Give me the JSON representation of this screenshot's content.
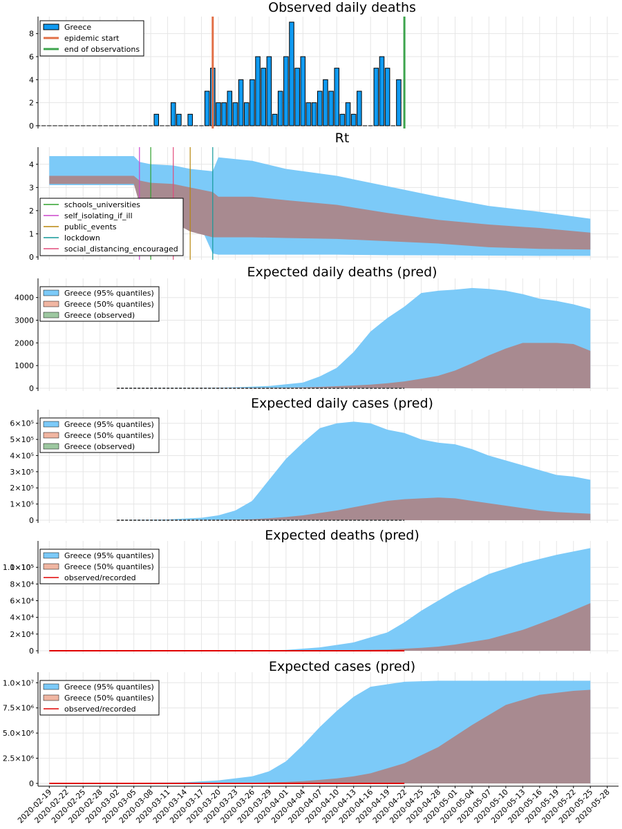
{
  "colors": {
    "bar": "#0f9af1",
    "ci95": "#7ccaf8",
    "ci50": "#a88a90",
    "ci50_legend": "#f0b6a2",
    "observed_legend": "#9dc7a0",
    "epidemic_start": "#e26f46",
    "end_obs": "#3da44d",
    "observed_line": "#e00000",
    "schools_universities": "#2ea02c",
    "self_isolating_if_ill": "#cc44cc",
    "public_events": "#b8860b",
    "lockdown": "#119999",
    "social_distancing_encouraged": "#e24a7a"
  },
  "x_dates": [
    "2020-02-19",
    "2020-02-22",
    "2020-02-25",
    "2020-02-28",
    "2020-03-02",
    "2020-03-05",
    "2020-03-08",
    "2020-03-11",
    "2020-03-14",
    "2020-03-17",
    "2020-03-20",
    "2020-03-23",
    "2020-03-26",
    "2020-03-29",
    "2020-04-01",
    "2020-04-04",
    "2020-04-07",
    "2020-04-10",
    "2020-04-13",
    "2020-04-16",
    "2020-04-19",
    "2020-04-22",
    "2020-04-25",
    "2020-04-28",
    "2020-05-01",
    "2020-05-04",
    "2020-05-07",
    "2020-05-10",
    "2020-05-13",
    "2020-05-16",
    "2020-05-19",
    "2020-05-22",
    "2020-05-25",
    "2020-05-28"
  ],
  "chart_data": [
    {
      "type": "bar",
      "title": "Observed daily deaths",
      "ylim": [
        0,
        9
      ],
      "yticks": [
        0,
        2,
        4,
        6,
        8
      ],
      "ytick_labels": [
        "0",
        "2",
        "4",
        "6",
        "8"
      ],
      "legend": [
        {
          "label": "Greece",
          "kind": "bar"
        },
        {
          "label": "epidemic start",
          "kind": "line",
          "color_key": "epidemic_start"
        },
        {
          "label": "end of observations",
          "kind": "line",
          "color_key": "end_obs"
        }
      ],
      "x_start": "2020-02-17",
      "values": [
        0,
        0,
        0,
        0,
        0,
        0,
        0,
        0,
        0,
        0,
        0,
        0,
        0,
        0,
        0,
        0,
        0,
        0,
        0,
        0,
        0,
        1,
        0,
        0,
        2,
        1,
        0,
        1,
        0,
        0,
        3,
        5,
        2,
        2,
        3,
        2,
        4,
        2,
        4,
        6,
        5,
        6,
        1,
        3,
        6,
        9,
        5,
        6,
        2,
        2,
        3,
        4,
        3,
        5,
        1,
        2,
        1,
        3,
        0,
        0,
        5,
        6,
        5,
        0,
        4
      ],
      "vlines": [
        {
          "date": "2020-03-19",
          "color_key": "epidemic_start"
        },
        {
          "date": "2020-04-22",
          "color_key": "end_obs"
        }
      ]
    },
    {
      "type": "area",
      "title": "Rt",
      "ylim": [
        0,
        4.5
      ],
      "yticks": [
        0,
        1,
        2,
        3,
        4
      ],
      "ytick_labels": [
        "0",
        "1",
        "2",
        "3",
        "4"
      ],
      "legend": [
        {
          "label": "schools_universities",
          "kind": "line",
          "color_key": "schools_universities"
        },
        {
          "label": "self_isolating_if_ill",
          "kind": "line",
          "color_key": "self_isolating_if_ill"
        },
        {
          "label": "public_events",
          "kind": "line",
          "color_key": "public_events"
        },
        {
          "label": "lockdown",
          "kind": "line",
          "color_key": "lockdown"
        },
        {
          "label": "social_distancing_encouraged",
          "kind": "line",
          "color_key": "social_distancing_encouraged"
        }
      ],
      "vlines": [
        {
          "date": "2020-03-06",
          "color_key": "self_isolating_if_ill"
        },
        {
          "date": "2020-03-08",
          "color_key": "schools_universities"
        },
        {
          "date": "2020-03-12",
          "color_key": "social_distancing_encouraged"
        },
        {
          "date": "2020-03-15",
          "color_key": "public_events"
        },
        {
          "date": "2020-03-19",
          "color_key": "lockdown"
        }
      ],
      "x": [
        "2020-02-19",
        "2020-03-05",
        "2020-03-06",
        "2020-03-08",
        "2020-03-12",
        "2020-03-15",
        "2020-03-19",
        "2020-03-20",
        "2020-03-26",
        "2020-04-01",
        "2020-04-10",
        "2020-04-19",
        "2020-04-28",
        "2020-05-07",
        "2020-05-16",
        "2020-05-25"
      ],
      "q95_low": [
        3.1,
        3.1,
        3.0,
        2.9,
        2.6,
        2.3,
        0.15,
        0.1,
        0.1,
        0.1,
        0.1,
        0.08,
        0.07,
        0.06,
        0.05,
        0.05
      ],
      "q95_high": [
        4.35,
        4.35,
        4.1,
        4.0,
        3.95,
        3.8,
        3.7,
        4.3,
        4.15,
        3.8,
        3.5,
        3.05,
        2.6,
        2.2,
        1.95,
        1.65
      ],
      "q50_low": [
        3.15,
        3.15,
        2.3,
        2.1,
        1.5,
        1.1,
        0.85,
        0.85,
        0.85,
        0.82,
        0.78,
        0.68,
        0.58,
        0.42,
        0.35,
        0.32
      ],
      "q50_high": [
        3.5,
        3.5,
        3.3,
        3.2,
        3.15,
        3.0,
        2.8,
        2.6,
        2.6,
        2.45,
        2.25,
        1.9,
        1.6,
        1.4,
        1.25,
        1.05
      ]
    },
    {
      "type": "area",
      "title": "Expected daily deaths (pred)",
      "ylim": [
        0,
        4600
      ],
      "yticks": [
        0,
        1000,
        2000,
        3000,
        4000
      ],
      "ytick_labels": [
        "0",
        "1000",
        "2000",
        "3000",
        "4000"
      ],
      "legend": [
        {
          "label": "Greece (95% quantiles)",
          "kind": "patch",
          "color_key": "ci95"
        },
        {
          "label": "Greece (50% quantiles)",
          "kind": "patch",
          "color_key": "ci50_legend"
        },
        {
          "label": "Greece (observed)",
          "kind": "patch",
          "color_key": "observed_legend"
        }
      ],
      "x": [
        "2020-03-02",
        "2020-03-17",
        "2020-03-23",
        "2020-03-29",
        "2020-04-04",
        "2020-04-07",
        "2020-04-10",
        "2020-04-13",
        "2020-04-16",
        "2020-04-19",
        "2020-04-22",
        "2020-04-25",
        "2020-04-28",
        "2020-05-01",
        "2020-05-04",
        "2020-05-07",
        "2020-05-10",
        "2020-05-13",
        "2020-05-16",
        "2020-05-19",
        "2020-05-22",
        "2020-05-25"
      ],
      "q95_low": [
        0,
        0,
        0,
        0,
        0,
        0,
        0,
        0,
        0,
        0,
        0,
        0,
        0,
        0,
        0,
        0,
        0,
        0,
        0,
        0,
        0,
        0
      ],
      "q95_high": [
        0,
        10,
        40,
        100,
        250,
        520,
        900,
        1600,
        2500,
        3100,
        3600,
        4200,
        4300,
        4350,
        4420,
        4380,
        4300,
        4150,
        3950,
        3850,
        3700,
        3500
      ],
      "q50_low": [
        0,
        0,
        0,
        0,
        0,
        0,
        0,
        0,
        0,
        0,
        0,
        0,
        0,
        0,
        0,
        0,
        0,
        0,
        0,
        0,
        0,
        0
      ],
      "q50_high": [
        0,
        2,
        8,
        20,
        40,
        60,
        90,
        120,
        160,
        220,
        300,
        420,
        550,
        780,
        1100,
        1450,
        1750,
        2000,
        2000,
        2000,
        1950,
        1650
      ],
      "observed_end": "2020-04-22"
    },
    {
      "type": "area",
      "title": "Expected daily cases (pred)",
      "ylim": [
        0,
        650000
      ],
      "yticks": [
        0,
        100000,
        200000,
        300000,
        400000,
        500000,
        600000
      ],
      "ytick_labels": [
        "0",
        "1×10⁵",
        "2×10⁵",
        "3×10⁵",
        "4×10⁵",
        "5×10⁵",
        "6×10⁵"
      ],
      "legend": [
        {
          "label": "Greece (95% quantiles)",
          "kind": "patch",
          "color_key": "ci95"
        },
        {
          "label": "Greece (50% quantiles)",
          "kind": "patch",
          "color_key": "ci50_legend"
        },
        {
          "label": "Greece (observed)",
          "kind": "patch",
          "color_key": "observed_legend"
        }
      ],
      "x": [
        "2020-03-02",
        "2020-03-11",
        "2020-03-17",
        "2020-03-20",
        "2020-03-23",
        "2020-03-26",
        "2020-03-29",
        "2020-04-01",
        "2020-04-04",
        "2020-04-07",
        "2020-04-10",
        "2020-04-13",
        "2020-04-16",
        "2020-04-19",
        "2020-04-22",
        "2020-04-25",
        "2020-04-28",
        "2020-05-01",
        "2020-05-04",
        "2020-05-07",
        "2020-05-10",
        "2020-05-13",
        "2020-05-16",
        "2020-05-19",
        "2020-05-22",
        "2020-05-25"
      ],
      "q95_low": [
        0,
        0,
        0,
        0,
        0,
        0,
        0,
        0,
        0,
        0,
        0,
        0,
        0,
        0,
        0,
        0,
        0,
        0,
        0,
        0,
        0,
        0,
        0,
        0,
        0,
        0
      ],
      "q95_high": [
        0,
        5000,
        15000,
        30000,
        60000,
        120000,
        250000,
        380000,
        480000,
        570000,
        600000,
        610000,
        600000,
        560000,
        540000,
        500000,
        480000,
        470000,
        440000,
        400000,
        370000,
        340000,
        310000,
        280000,
        270000,
        250000
      ],
      "q50_low": [
        0,
        0,
        0,
        0,
        0,
        0,
        0,
        0,
        0,
        0,
        0,
        0,
        0,
        0,
        0,
        0,
        0,
        0,
        0,
        0,
        0,
        0,
        0,
        0,
        0,
        0
      ],
      "q50_high": [
        0,
        0,
        0,
        1000,
        3000,
        6000,
        12000,
        20000,
        30000,
        45000,
        60000,
        80000,
        100000,
        120000,
        130000,
        135000,
        140000,
        135000,
        120000,
        105000,
        90000,
        75000,
        60000,
        50000,
        45000,
        40000
      ],
      "observed_end": "2020-04-22"
    },
    {
      "type": "area",
      "title": "Expected deaths (pred)",
      "ylim": [
        0,
        125000
      ],
      "yticks": [
        0,
        20000,
        40000,
        60000,
        80000,
        100000
      ],
      "ytick_labels": [
        "0",
        "2×10⁴",
        "4×10⁴",
        "6×10⁴",
        "8×10⁴",
        "1×10⁵"
      ],
      "extra_ytick": {
        "value": 100000,
        "label": "1.0×10⁵"
      },
      "legend": [
        {
          "label": "Greece (95% quantiles)",
          "kind": "patch",
          "color_key": "ci95"
        },
        {
          "label": "Greece (50% quantiles)",
          "kind": "patch",
          "color_key": "ci50_legend"
        },
        {
          "label": "observed/recorded",
          "kind": "line",
          "color_key": "observed_line"
        }
      ],
      "x": [
        "2020-02-19",
        "2020-03-26",
        "2020-04-01",
        "2020-04-07",
        "2020-04-13",
        "2020-04-19",
        "2020-04-22",
        "2020-04-25",
        "2020-04-28",
        "2020-05-01",
        "2020-05-07",
        "2020-05-13",
        "2020-05-19",
        "2020-05-25"
      ],
      "q95_low": [
        0,
        0,
        0,
        0,
        0,
        0,
        0,
        0,
        0,
        0,
        0,
        0,
        0,
        0
      ],
      "q95_high": [
        0,
        0,
        1000,
        4000,
        10000,
        22000,
        34000,
        48000,
        60000,
        72000,
        92000,
        105000,
        115000,
        123000
      ],
      "q50_low": [
        0,
        0,
        0,
        0,
        0,
        0,
        0,
        0,
        0,
        0,
        0,
        0,
        0,
        0
      ],
      "q50_high": [
        0,
        0,
        0,
        300,
        800,
        1600,
        2500,
        3500,
        5000,
        7500,
        14000,
        25000,
        40000,
        57000
      ],
      "observed_line": {
        "from": "2020-02-19",
        "to": "2020-04-22",
        "value": 0
      }
    },
    {
      "type": "area",
      "title": "Expected cases (pred)",
      "ylim": [
        0,
        10500000
      ],
      "yticks": [
        0,
        2500000,
        5000000,
        7500000,
        10000000
      ],
      "ytick_labels": [
        "0",
        "2.5×10⁶",
        "5.0×10⁶",
        "7.5×10⁶",
        "1.0×10⁷"
      ],
      "legend": [
        {
          "label": "Greece (95% quantiles)",
          "kind": "patch",
          "color_key": "ci95"
        },
        {
          "label": "Greece (50% quantiles)",
          "kind": "patch",
          "color_key": "ci50_legend"
        },
        {
          "label": "observed/recorded",
          "kind": "line",
          "color_key": "observed_line"
        }
      ],
      "x": [
        "2020-02-19",
        "2020-03-14",
        "2020-03-20",
        "2020-03-26",
        "2020-03-29",
        "2020-04-01",
        "2020-04-04",
        "2020-04-07",
        "2020-04-10",
        "2020-04-13",
        "2020-04-16",
        "2020-04-22",
        "2020-04-28",
        "2020-05-04",
        "2020-05-10",
        "2020-05-16",
        "2020-05-22",
        "2020-05-25"
      ],
      "q95_low": [
        0,
        0,
        0,
        0,
        0,
        0,
        0,
        0,
        0,
        0,
        0,
        0,
        0,
        0,
        0,
        0,
        0,
        0
      ],
      "q95_high": [
        0,
        100000,
        300000,
        700000,
        1200000,
        2200000,
        3800000,
        5600000,
        7200000,
        8600000,
        9600000,
        10100000,
        10200000,
        10200000,
        10200000,
        10200000,
        10200000,
        10200000
      ],
      "q50_low": [
        0,
        0,
        0,
        0,
        0,
        0,
        0,
        0,
        0,
        0,
        0,
        0,
        0,
        0,
        0,
        0,
        0,
        0
      ],
      "q50_high": [
        0,
        0,
        20000,
        60000,
        100000,
        150000,
        220000,
        350000,
        500000,
        700000,
        1000000,
        2000000,
        3600000,
        5800000,
        7800000,
        8800000,
        9200000,
        9300000
      ],
      "observed_line": {
        "from": "2020-02-19",
        "to": "2020-04-22",
        "value": 0
      }
    }
  ]
}
